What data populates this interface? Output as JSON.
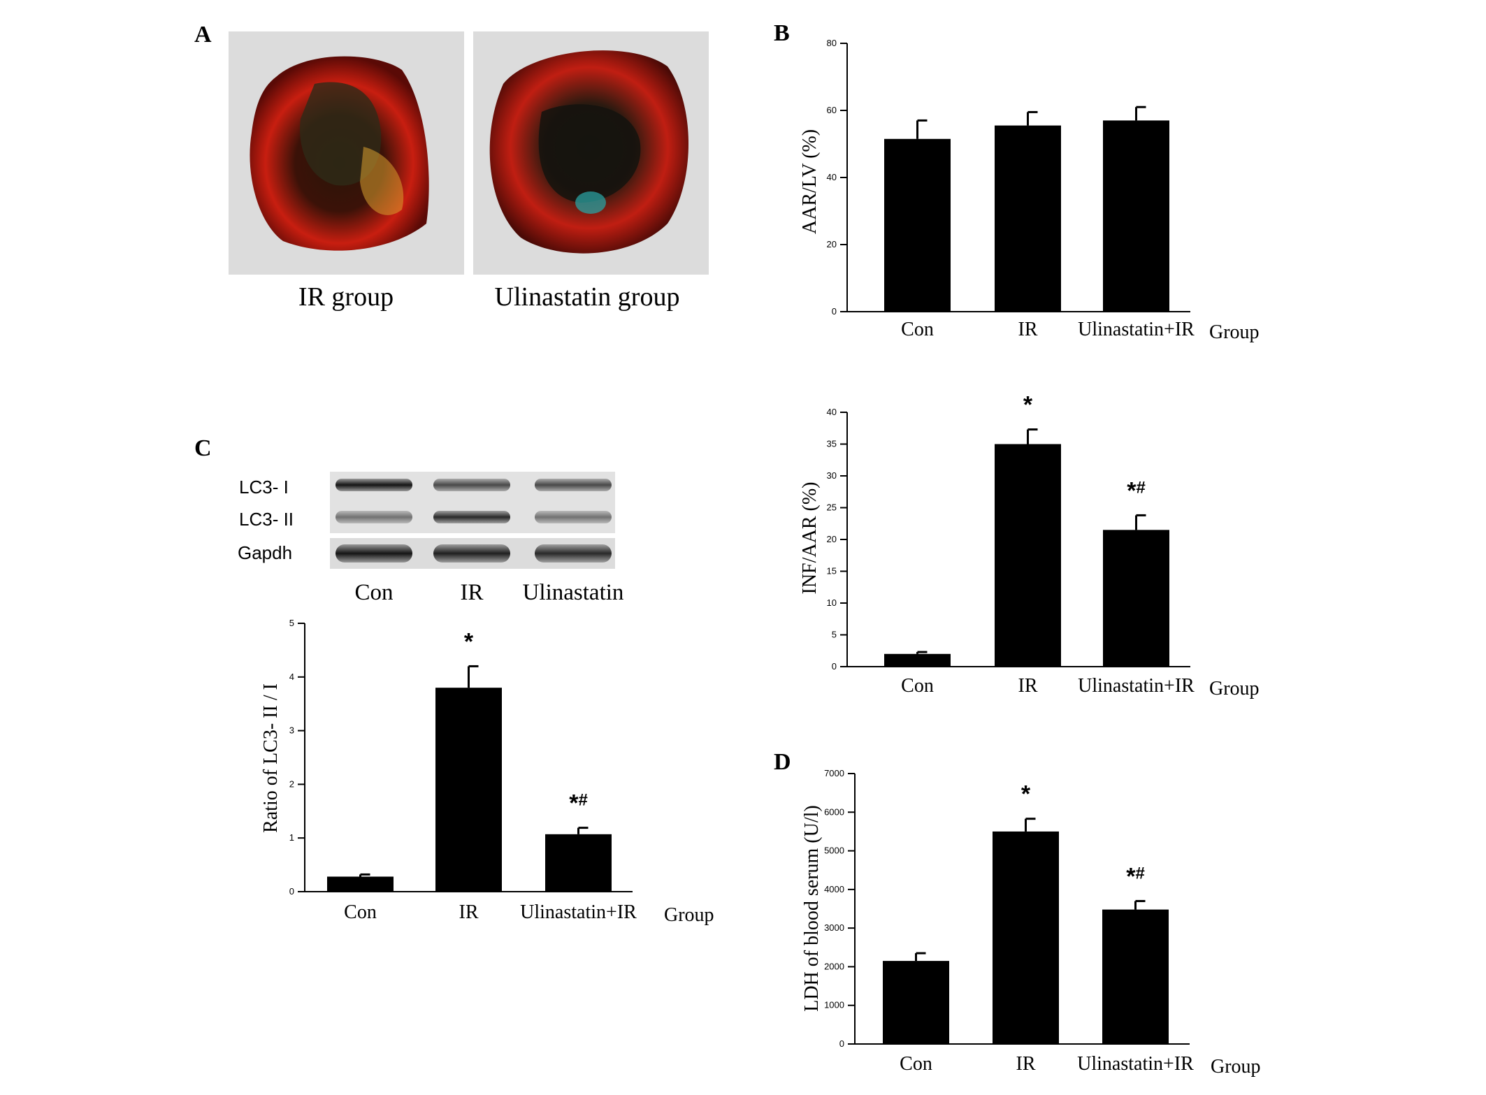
{
  "colors": {
    "bar": "#000000",
    "axis": "#000000",
    "background": "#ffffff"
  },
  "panel_a": {
    "letter": "A",
    "images": [
      {
        "caption": "IR group"
      },
      {
        "caption": "Ulinastatin group"
      }
    ]
  },
  "panel_b": {
    "letter": "B"
  },
  "panel_c": {
    "letter": "C",
    "blot": {
      "row_labels": [
        "LC3- I",
        "LC3- II",
        "Gapdh"
      ],
      "lane_labels": [
        "Con",
        "IR",
        "Ulinastatin"
      ]
    }
  },
  "panel_d": {
    "letter": "D"
  },
  "chart_data": [
    {
      "id": "aar",
      "type": "bar",
      "categories": [
        "Con",
        "IR",
        "Ulinastatin+IR"
      ],
      "values": [
        51.5,
        55.5,
        57
      ],
      "errors": [
        5.5,
        4,
        4
      ],
      "annotations": [
        "",
        "",
        ""
      ],
      "ylabel": "AAR/LV (%)",
      "xlabel": "Group",
      "ylim": [
        0,
        80
      ],
      "yticks": [
        0,
        20,
        40,
        60,
        80
      ],
      "grid": false
    },
    {
      "id": "inf",
      "type": "bar",
      "categories": [
        "Con",
        "IR",
        "Ulinastatin+IR"
      ],
      "values": [
        2,
        35,
        21.5
      ],
      "errors": [
        0.3,
        2.3,
        2.3
      ],
      "annotations": [
        "",
        "*",
        "*#"
      ],
      "ylabel": "INF/AAR (%)",
      "xlabel": "Group",
      "ylim": [
        0,
        40
      ],
      "yticks": [
        0,
        5,
        10,
        15,
        20,
        25,
        30,
        35,
        40
      ],
      "grid": false
    },
    {
      "id": "lc3",
      "type": "bar",
      "categories": [
        "Con",
        "IR",
        "Ulinastatin+IR"
      ],
      "values": [
        0.28,
        3.8,
        1.07
      ],
      "errors": [
        0.04,
        0.4,
        0.12
      ],
      "annotations": [
        "",
        "*",
        "*#"
      ],
      "ylabel": "Ratio of LC3- II / I",
      "xlabel": "Group",
      "ylim": [
        0,
        5
      ],
      "yticks": [
        0,
        1,
        2,
        3,
        4,
        5
      ],
      "grid": false
    },
    {
      "id": "ldh",
      "type": "bar",
      "categories": [
        "Con",
        "IR",
        "Ulinastatin+IR"
      ],
      "values": [
        2150,
        5500,
        3480
      ],
      "errors": [
        200,
        330,
        220
      ],
      "annotations": [
        "",
        "*",
        "*#"
      ],
      "ylabel": "LDH of blood serum (U/l)",
      "xlabel": "Group",
      "ylim": [
        0,
        7000
      ],
      "yticks": [
        0,
        1000,
        2000,
        3000,
        4000,
        5000,
        6000,
        7000
      ],
      "grid": false
    }
  ]
}
